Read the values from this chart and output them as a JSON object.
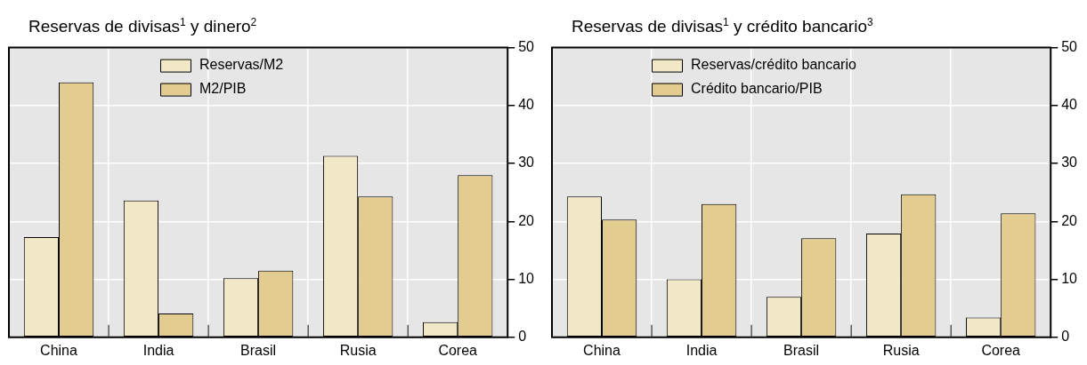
{
  "chart_data": [
    {
      "type": "bar",
      "title": "Reservas de divisas$^{1}$ y dinero$^{2}$",
      "categories": [
        "China",
        "India",
        "Brasil",
        "Rusia",
        "Corea"
      ],
      "series": [
        {
          "name": "Reservas/M2",
          "color": "#f2e7c6",
          "values": [
            17.3,
            23.6,
            10.2,
            31.3,
            2.6
          ]
        },
        {
          "name": "M2/PIB",
          "color": "#e2cc8f",
          "values": [
            44.0,
            4.1,
            11.5,
            24.3,
            28.0
          ]
        }
      ],
      "ylim": [
        0,
        50
      ],
      "yticks": [
        0,
        10,
        20,
        30,
        40,
        50
      ],
      "grid": true,
      "legend": "top left"
    },
    {
      "type": "bar",
      "title": "Reservas de divisas$^{1}$ y crédito bancario$^{3}$",
      "categories": [
        "China",
        "India",
        "Brasil",
        "Rusia",
        "Corea"
      ],
      "series": [
        {
          "name": "Reservas/crédito bancario",
          "color": "#f2e7c6",
          "values": [
            24.3,
            10.0,
            7.0,
            17.9,
            3.4
          ]
        },
        {
          "name": "Crédito bancario/PIB",
          "color": "#e2cc8f",
          "values": [
            20.3,
            23.0,
            17.1,
            24.7,
            21.4
          ]
        }
      ],
      "ylim": [
        0,
        50
      ],
      "yticks": [
        0,
        10,
        20,
        30,
        40,
        50
      ],
      "grid": true,
      "legend": "top left"
    }
  ]
}
